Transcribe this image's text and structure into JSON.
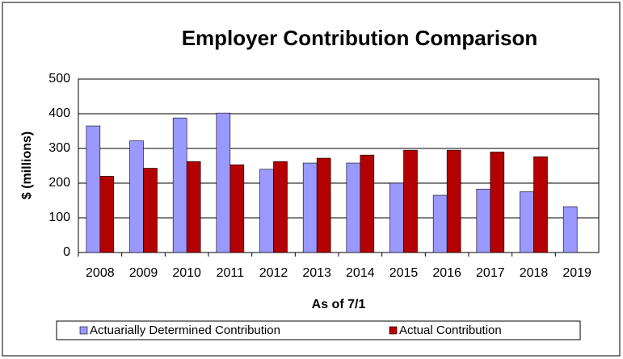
{
  "chart_data": {
    "type": "bar",
    "title": "Employer Contribution Comparison",
    "x_label": "As of 7/1",
    "y_label": "$ (millions)",
    "categories": [
      "2008",
      "2009",
      "2010",
      "2011",
      "2012",
      "2013",
      "2014",
      "2015",
      "2016",
      "2017",
      "2018",
      "2019"
    ],
    "series": [
      {
        "name": "Actuarially Determined Contribution",
        "color": "#9999ff",
        "values": [
          365,
          322,
          388,
          402,
          240,
          258,
          258,
          200,
          165,
          183,
          175,
          132
        ]
      },
      {
        "name": "Actual Contribution",
        "color": "#b30000",
        "values": [
          220,
          243,
          262,
          253,
          262,
          272,
          281,
          295,
          295,
          290,
          276,
          null
        ]
      }
    ],
    "ylim": [
      0,
      500
    ],
    "yticks": [
      0,
      100,
      200,
      300,
      400,
      500
    ],
    "grid": true,
    "legend": "bottom"
  }
}
